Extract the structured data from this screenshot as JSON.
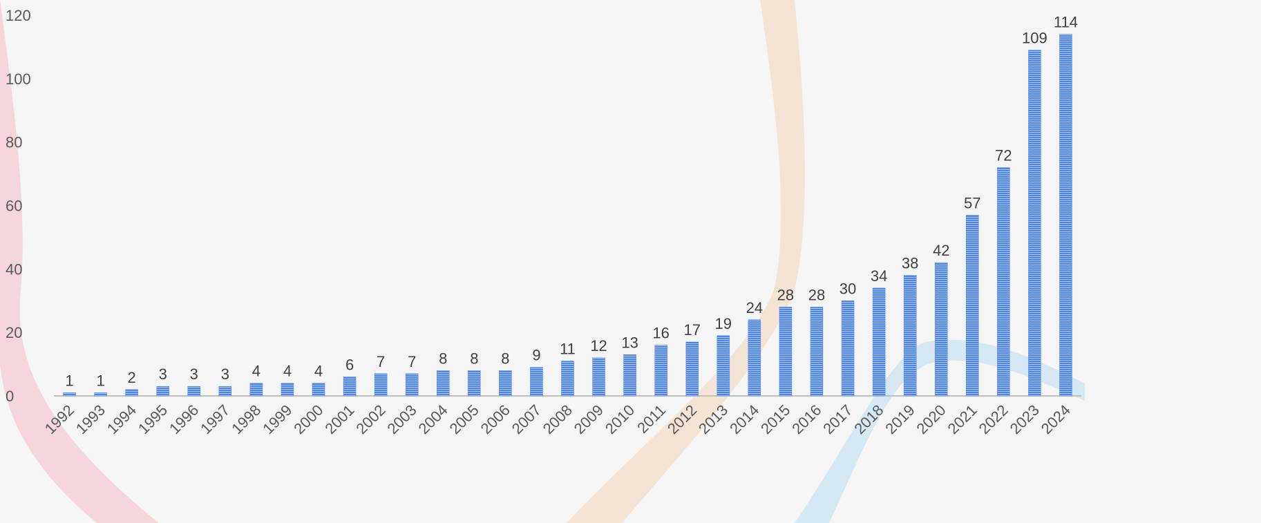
{
  "chart_data": {
    "type": "bar",
    "categories": [
      "1992",
      "1993",
      "1994",
      "1995",
      "1996",
      "1997",
      "1998",
      "1999",
      "2000",
      "2001",
      "2002",
      "2003",
      "2004",
      "2005",
      "2006",
      "2007",
      "2008",
      "2009",
      "2010",
      "2011",
      "2012",
      "2013",
      "2014",
      "2015",
      "2016",
      "2017",
      "2018",
      "2019",
      "2020",
      "2021",
      "2022",
      "2023",
      "2024"
    ],
    "values": [
      1,
      1,
      2,
      3,
      3,
      3,
      4,
      4,
      4,
      6,
      7,
      7,
      8,
      8,
      8,
      9,
      11,
      12,
      13,
      16,
      17,
      19,
      24,
      28,
      28,
      30,
      34,
      38,
      42,
      57,
      72,
      109,
      114
    ],
    "color": "#4f86e8",
    "ylim": [
      0,
      120
    ],
    "yticks": [
      0,
      20,
      40,
      60,
      80,
      100,
      120
    ],
    "grid": false
  }
}
